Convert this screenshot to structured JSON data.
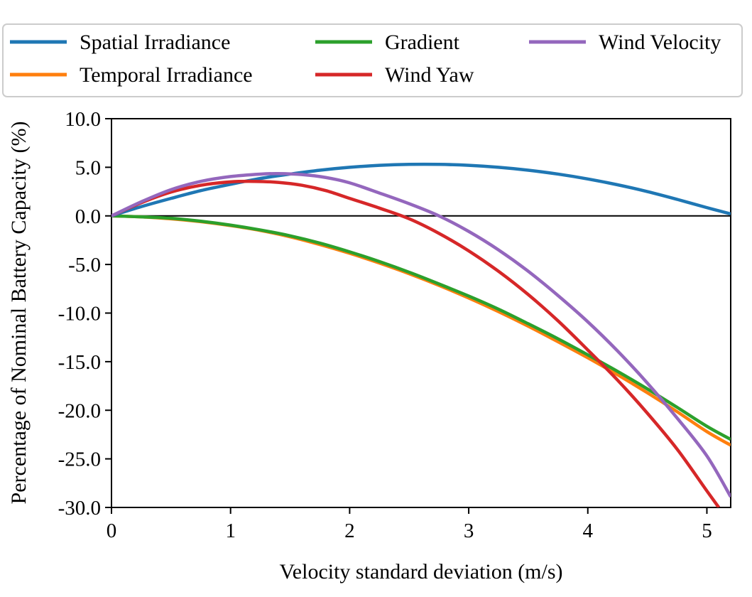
{
  "chart_data": {
    "type": "line",
    "title": "",
    "xlabel": "Velocity standard deviation (m/s)",
    "ylabel": "Percentage of Nominal Battery Capacity (%)",
    "xlim": [
      0,
      5.2
    ],
    "ylim": [
      -30,
      10
    ],
    "xticks": [
      0,
      1,
      2,
      3,
      4,
      5
    ],
    "xtick_labels": [
      "0",
      "1",
      "2",
      "3",
      "4",
      "5"
    ],
    "yticks": [
      10,
      5,
      0,
      -5,
      -10,
      -15,
      -20,
      -25,
      -30
    ],
    "ytick_labels": [
      "10.0",
      "5.0",
      "0.0",
      "-5.0",
      "-10.0",
      "-15.0",
      "-20.0",
      "-25.0",
      "-30.0"
    ],
    "grid": false,
    "zero_line": true,
    "legend_position": "top, above plot",
    "legend_columns": 3,
    "series": [
      {
        "name": "Spatial Irradiance",
        "color": "#1f77b4",
        "x": [
          0,
          0.25,
          0.5,
          0.75,
          1.0,
          1.25,
          1.5,
          1.75,
          2.0,
          2.25,
          2.5,
          2.75,
          3.0,
          3.25,
          3.5,
          3.75,
          4.0,
          4.25,
          4.5,
          4.75,
          5.0,
          5.2
        ],
        "y": [
          0,
          0.95,
          1.8,
          2.6,
          3.25,
          3.85,
          4.3,
          4.7,
          5.0,
          5.2,
          5.3,
          5.3,
          5.2,
          5.0,
          4.7,
          4.3,
          3.8,
          3.2,
          2.5,
          1.7,
          0.85,
          0.2
        ]
      },
      {
        "name": "Temporal Irradiance",
        "color": "#ff7f0e",
        "x": [
          0,
          0.25,
          0.5,
          0.75,
          1.0,
          1.25,
          1.5,
          1.75,
          2.0,
          2.25,
          2.5,
          2.75,
          3.0,
          3.25,
          3.5,
          3.75,
          4.0,
          4.25,
          4.5,
          4.75,
          5.0,
          5.2
        ],
        "y": [
          0,
          -0.1,
          -0.3,
          -0.6,
          -1.0,
          -1.5,
          -2.15,
          -2.95,
          -3.85,
          -4.85,
          -5.95,
          -7.15,
          -8.45,
          -9.85,
          -11.35,
          -12.95,
          -14.6,
          -16.35,
          -18.2,
          -20.15,
          -22.2,
          -23.6
        ]
      },
      {
        "name": "Gradient",
        "color": "#2ca02c",
        "x": [
          0,
          0.25,
          0.5,
          0.75,
          1.0,
          1.25,
          1.5,
          1.75,
          2.0,
          2.25,
          2.5,
          2.75,
          3.0,
          3.25,
          3.5,
          3.75,
          4.0,
          4.25,
          4.5,
          4.75,
          5.0,
          5.2
        ],
        "y": [
          0,
          -0.1,
          -0.25,
          -0.55,
          -0.95,
          -1.45,
          -2.05,
          -2.8,
          -3.7,
          -4.7,
          -5.8,
          -7.0,
          -8.25,
          -9.6,
          -11.1,
          -12.65,
          -14.3,
          -16.0,
          -17.8,
          -19.7,
          -21.65,
          -23.0
        ]
      },
      {
        "name": "Wind Yaw",
        "color": "#d62728",
        "x": [
          0,
          0.25,
          0.5,
          0.75,
          1.0,
          1.2,
          1.4,
          1.6,
          1.8,
          2.0,
          2.25,
          2.5,
          2.75,
          3.0,
          3.25,
          3.5,
          3.75,
          4.0,
          4.25,
          4.5,
          4.75,
          5.0,
          5.1
        ],
        "y": [
          0,
          1.35,
          2.45,
          3.15,
          3.5,
          3.55,
          3.45,
          3.15,
          2.6,
          1.8,
          0.8,
          -0.3,
          -1.8,
          -3.6,
          -5.7,
          -8.1,
          -10.8,
          -13.8,
          -16.9,
          -20.3,
          -24.0,
          -28.3,
          -30.0
        ]
      },
      {
        "name": "Wind Velocity",
        "color": "#9467bd",
        "x": [
          0,
          0.25,
          0.5,
          0.75,
          1.0,
          1.25,
          1.4,
          1.6,
          1.8,
          2.0,
          2.25,
          2.5,
          2.75,
          3.0,
          3.25,
          3.5,
          3.75,
          4.0,
          4.25,
          4.5,
          4.75,
          5.0,
          5.2
        ],
        "y": [
          0,
          1.45,
          2.7,
          3.55,
          4.05,
          4.3,
          4.35,
          4.25,
          3.95,
          3.4,
          2.35,
          1.25,
          0.0,
          -1.6,
          -3.5,
          -5.7,
          -8.2,
          -10.9,
          -13.9,
          -17.2,
          -20.8,
          -24.7,
          -28.9
        ]
      }
    ]
  }
}
